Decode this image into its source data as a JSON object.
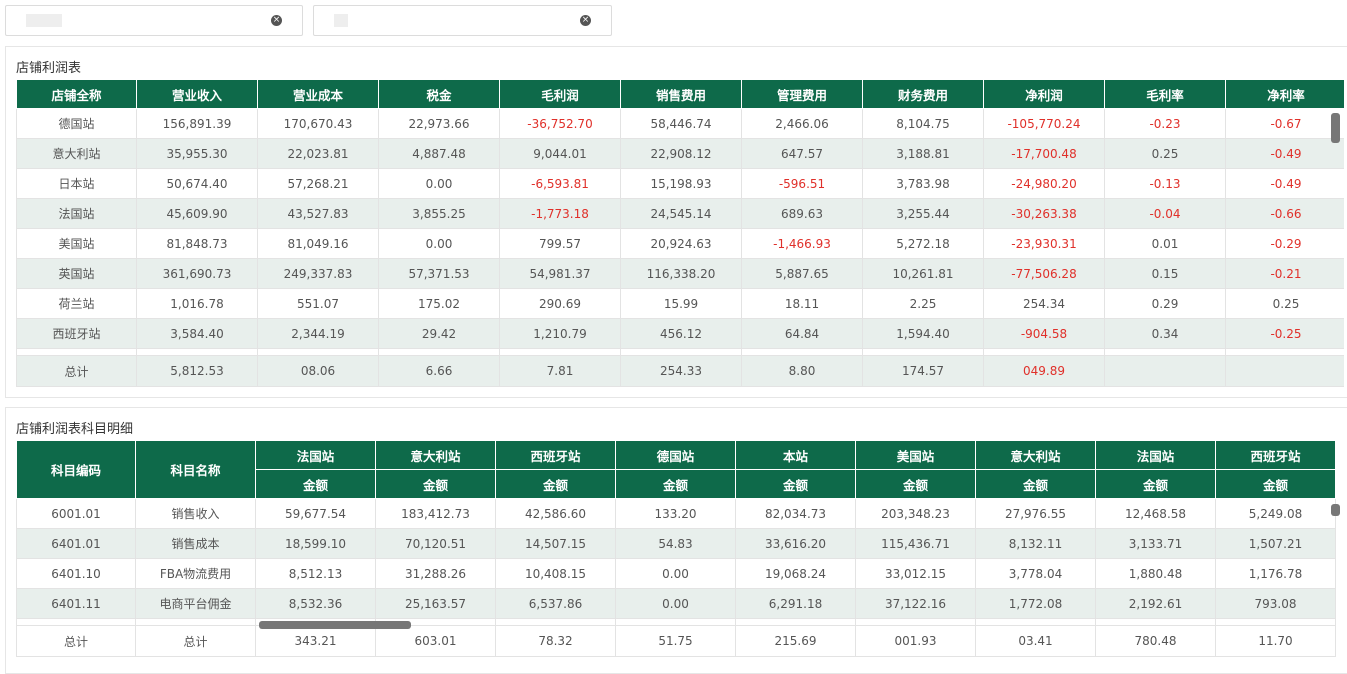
{
  "profit_table": {
    "title": "店铺利润表",
    "columns": [
      "店铺全称",
      "营业收入",
      "营业成本",
      "税金",
      "毛利润",
      "销售费用",
      "管理费用",
      "财务费用",
      "净利润",
      "毛利率",
      "净利率"
    ],
    "rows": [
      [
        "德国站",
        "156,891.39",
        "170,670.43",
        "22,973.66",
        "-36,752.70",
        "58,446.74",
        "2,466.06",
        "8,104.75",
        "-105,770.24",
        "-0.23",
        "-0.67"
      ],
      [
        "意大利站",
        "35,955.30",
        "22,023.81",
        "4,887.48",
        "9,044.01",
        "22,908.12",
        "647.57",
        "3,188.81",
        "-17,700.48",
        "0.25",
        "-0.49"
      ],
      [
        "日本站",
        "50,674.40",
        "57,268.21",
        "0.00",
        "-6,593.81",
        "15,198.93",
        "-596.51",
        "3,783.98",
        "-24,980.20",
        "-0.13",
        "-0.49"
      ],
      [
        "法国站",
        "45,609.90",
        "43,527.83",
        "3,855.25",
        "-1,773.18",
        "24,545.14",
        "689.63",
        "3,255.44",
        "-30,263.38",
        "-0.04",
        "-0.66"
      ],
      [
        "美国站",
        "81,848.73",
        "81,049.16",
        "0.00",
        "799.57",
        "20,924.63",
        "-1,466.93",
        "5,272.18",
        "-23,930.31",
        "0.01",
        "-0.29"
      ],
      [
        "英国站",
        "361,690.73",
        "249,337.83",
        "57,371.53",
        "54,981.37",
        "116,338.20",
        "5,887.65",
        "10,261.81",
        "-77,506.28",
        "0.15",
        "-0.21"
      ],
      [
        "荷兰站",
        "1,016.78",
        "551.07",
        "175.02",
        "290.69",
        "15.99",
        "18.11",
        "2.25",
        "254.34",
        "0.29",
        "0.25"
      ],
      [
        "西班牙站",
        "3,584.40",
        "2,344.19",
        "29.42",
        "1,210.79",
        "456.12",
        "64.84",
        "1,594.40",
        "-904.58",
        "0.34",
        "-0.25"
      ]
    ],
    "total": [
      "总计",
      "5,812.53",
      "08.06",
      "6.66",
      "7.81",
      "254.33",
      "8.80",
      "174.57",
      "049.89"
    ]
  },
  "detail_table": {
    "title": "店铺利润表科目明细",
    "columns": [
      "科目编码",
      "科目名称"
    ],
    "stations": [
      "法国站",
      "意大利站",
      "西班牙站",
      "德国站",
      "本站",
      "美国站",
      "意大利站",
      "法国站",
      "西班牙站"
    ],
    "sub_header": "金额",
    "rows": [
      [
        "6001.01",
        "销售收入",
        "59,677.54",
        "183,412.73",
        "42,586.60",
        "133.20",
        "82,034.73",
        "203,348.23",
        "27,976.55",
        "12,468.58",
        "5,249.08"
      ],
      [
        "6401.01",
        "销售成本",
        "18,599.10",
        "70,120.51",
        "14,507.15",
        "54.83",
        "33,616.20",
        "115,436.71",
        "8,132.11",
        "3,133.71",
        "1,507.21"
      ],
      [
        "6401.10",
        "FBA物流费用",
        "8,512.13",
        "31,288.26",
        "10,408.15",
        "0.00",
        "19,068.24",
        "33,012.15",
        "3,778.04",
        "1,880.48",
        "1,176.78"
      ],
      [
        "6401.11",
        "电商平台佣金",
        "8,532.36",
        "25,163.57",
        "6,537.86",
        "0.00",
        "6,291.18",
        "37,122.16",
        "1,772.08",
        "2,192.61",
        "793.08"
      ]
    ],
    "total": [
      "总计",
      "总计",
      "343.21",
      "603.01",
      "78.32",
      "51.75",
      "215.69",
      "001.93",
      "03.41",
      "780.48",
      "11.70"
    ]
  }
}
